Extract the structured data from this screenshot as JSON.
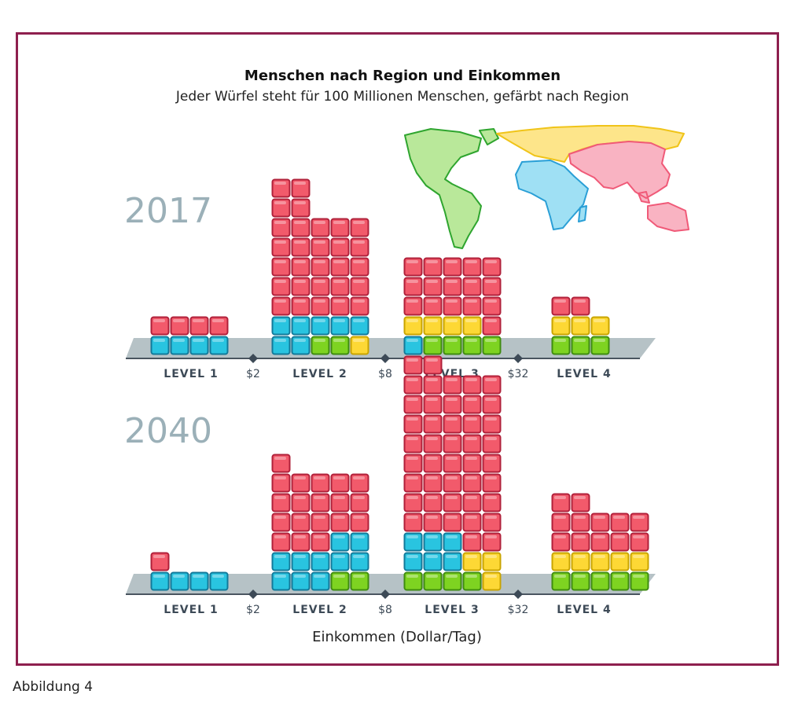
{
  "title": "Menschen nach Region und Einkommen",
  "subtitle": "Jeder Würfel steht für 100 Millionen Menschen, gefärbt nach Region",
  "xlabel": "Einkommen (Dollar/Tag)",
  "caption": "Abbildung 4",
  "colors": {
    "red": "#f25a6b",
    "cyan": "#29c4e0",
    "green": "#7ed321",
    "yellow": "#fdd835",
    "platform": "#b6c2c6",
    "map_green": "#b9e89a",
    "map_blue": "#9fe0f4",
    "map_yellow": "#fde58a",
    "map_pink": "#f9b3c2"
  },
  "map_regions": [
    {
      "name": "americas",
      "color": "green"
    },
    {
      "name": "africa",
      "color": "cyan"
    },
    {
      "name": "europe",
      "color": "yellow"
    },
    {
      "name": "asia",
      "color": "red"
    }
  ],
  "chart_data": {
    "type": "stacked unit (cube) chart",
    "unit": "100 Millionen Menschen",
    "levels": [
      "LEVEL 1",
      "LEVEL 2",
      "LEVEL 3",
      "LEVEL 4"
    ],
    "thresholds": [
      "$2",
      "$8",
      "$32"
    ],
    "panels": [
      {
        "year": "2017",
        "groups": [
          {
            "level": "LEVEL 1",
            "columns": [
              [
                "cyan",
                "red"
              ],
              [
                "cyan",
                "red"
              ],
              [
                "cyan",
                "red"
              ],
              [
                "cyan",
                "red"
              ]
            ]
          },
          {
            "level": "LEVEL 2",
            "columns": [
              [
                "cyan",
                "cyan",
                "red",
                "red",
                "red",
                "red",
                "red",
                "red",
                "red"
              ],
              [
                "cyan",
                "cyan",
                "red",
                "red",
                "red",
                "red",
                "red",
                "red",
                "red"
              ],
              [
                "green",
                "cyan",
                "red",
                "red",
                "red",
                "red",
                "red"
              ],
              [
                "green",
                "cyan",
                "red",
                "red",
                "red",
                "red",
                "red"
              ],
              [
                "yellow",
                "cyan",
                "red",
                "red",
                "red",
                "red",
                "red"
              ]
            ]
          },
          {
            "level": "LEVEL 3",
            "columns": [
              [
                "cyan",
                "yellow",
                "red",
                "red",
                "red"
              ],
              [
                "green",
                "yellow",
                "red",
                "red",
                "red"
              ],
              [
                "green",
                "yellow",
                "red",
                "red",
                "red"
              ],
              [
                "green",
                "yellow",
                "red",
                "red",
                "red"
              ],
              [
                "green",
                "red",
                "red",
                "red",
                "red"
              ]
            ]
          },
          {
            "level": "LEVEL 4",
            "columns": [
              [
                "green",
                "yellow",
                "red"
              ],
              [
                "green",
                "yellow",
                "red"
              ],
              [
                "green",
                "yellow"
              ]
            ]
          }
        ]
      },
      {
        "year": "2040",
        "groups": [
          {
            "level": "LEVEL 1",
            "columns": [
              [
                "cyan",
                "red"
              ],
              [
                "cyan"
              ],
              [
                "cyan"
              ],
              [
                "cyan"
              ]
            ]
          },
          {
            "level": "LEVEL 2",
            "columns": [
              [
                "cyan",
                "cyan",
                "red",
                "red",
                "red",
                "red",
                "red"
              ],
              [
                "cyan",
                "cyan",
                "red",
                "red",
                "red",
                "red"
              ],
              [
                "cyan",
                "cyan",
                "red",
                "red",
                "red",
                "red"
              ],
              [
                "green",
                "cyan",
                "cyan",
                "red",
                "red",
                "red"
              ],
              [
                "green",
                "cyan",
                "cyan",
                "red",
                "red",
                "red"
              ]
            ]
          },
          {
            "level": "LEVEL 3",
            "columns": [
              [
                "green",
                "cyan",
                "cyan",
                "red",
                "red",
                "red",
                "red",
                "red",
                "red",
                "red",
                "red",
                "red"
              ],
              [
                "green",
                "cyan",
                "cyan",
                "red",
                "red",
                "red",
                "red",
                "red",
                "red",
                "red",
                "red",
                "red"
              ],
              [
                "green",
                "cyan",
                "cyan",
                "red",
                "red",
                "red",
                "red",
                "red",
                "red",
                "red",
                "red"
              ],
              [
                "green",
                "yellow",
                "red",
                "red",
                "red",
                "red",
                "red",
                "red",
                "red",
                "red",
                "red"
              ],
              [
                "yellow",
                "yellow",
                "red",
                "red",
                "red",
                "red",
                "red",
                "red",
                "red",
                "red",
                "red"
              ]
            ]
          },
          {
            "level": "LEVEL 4",
            "columns": [
              [
                "green",
                "yellow",
                "red",
                "red",
                "red"
              ],
              [
                "green",
                "yellow",
                "red",
                "red",
                "red"
              ],
              [
                "green",
                "yellow",
                "red",
                "red"
              ],
              [
                "green",
                "yellow",
                "red",
                "red"
              ],
              [
                "green",
                "yellow",
                "red",
                "red"
              ]
            ]
          }
        ]
      }
    ]
  }
}
